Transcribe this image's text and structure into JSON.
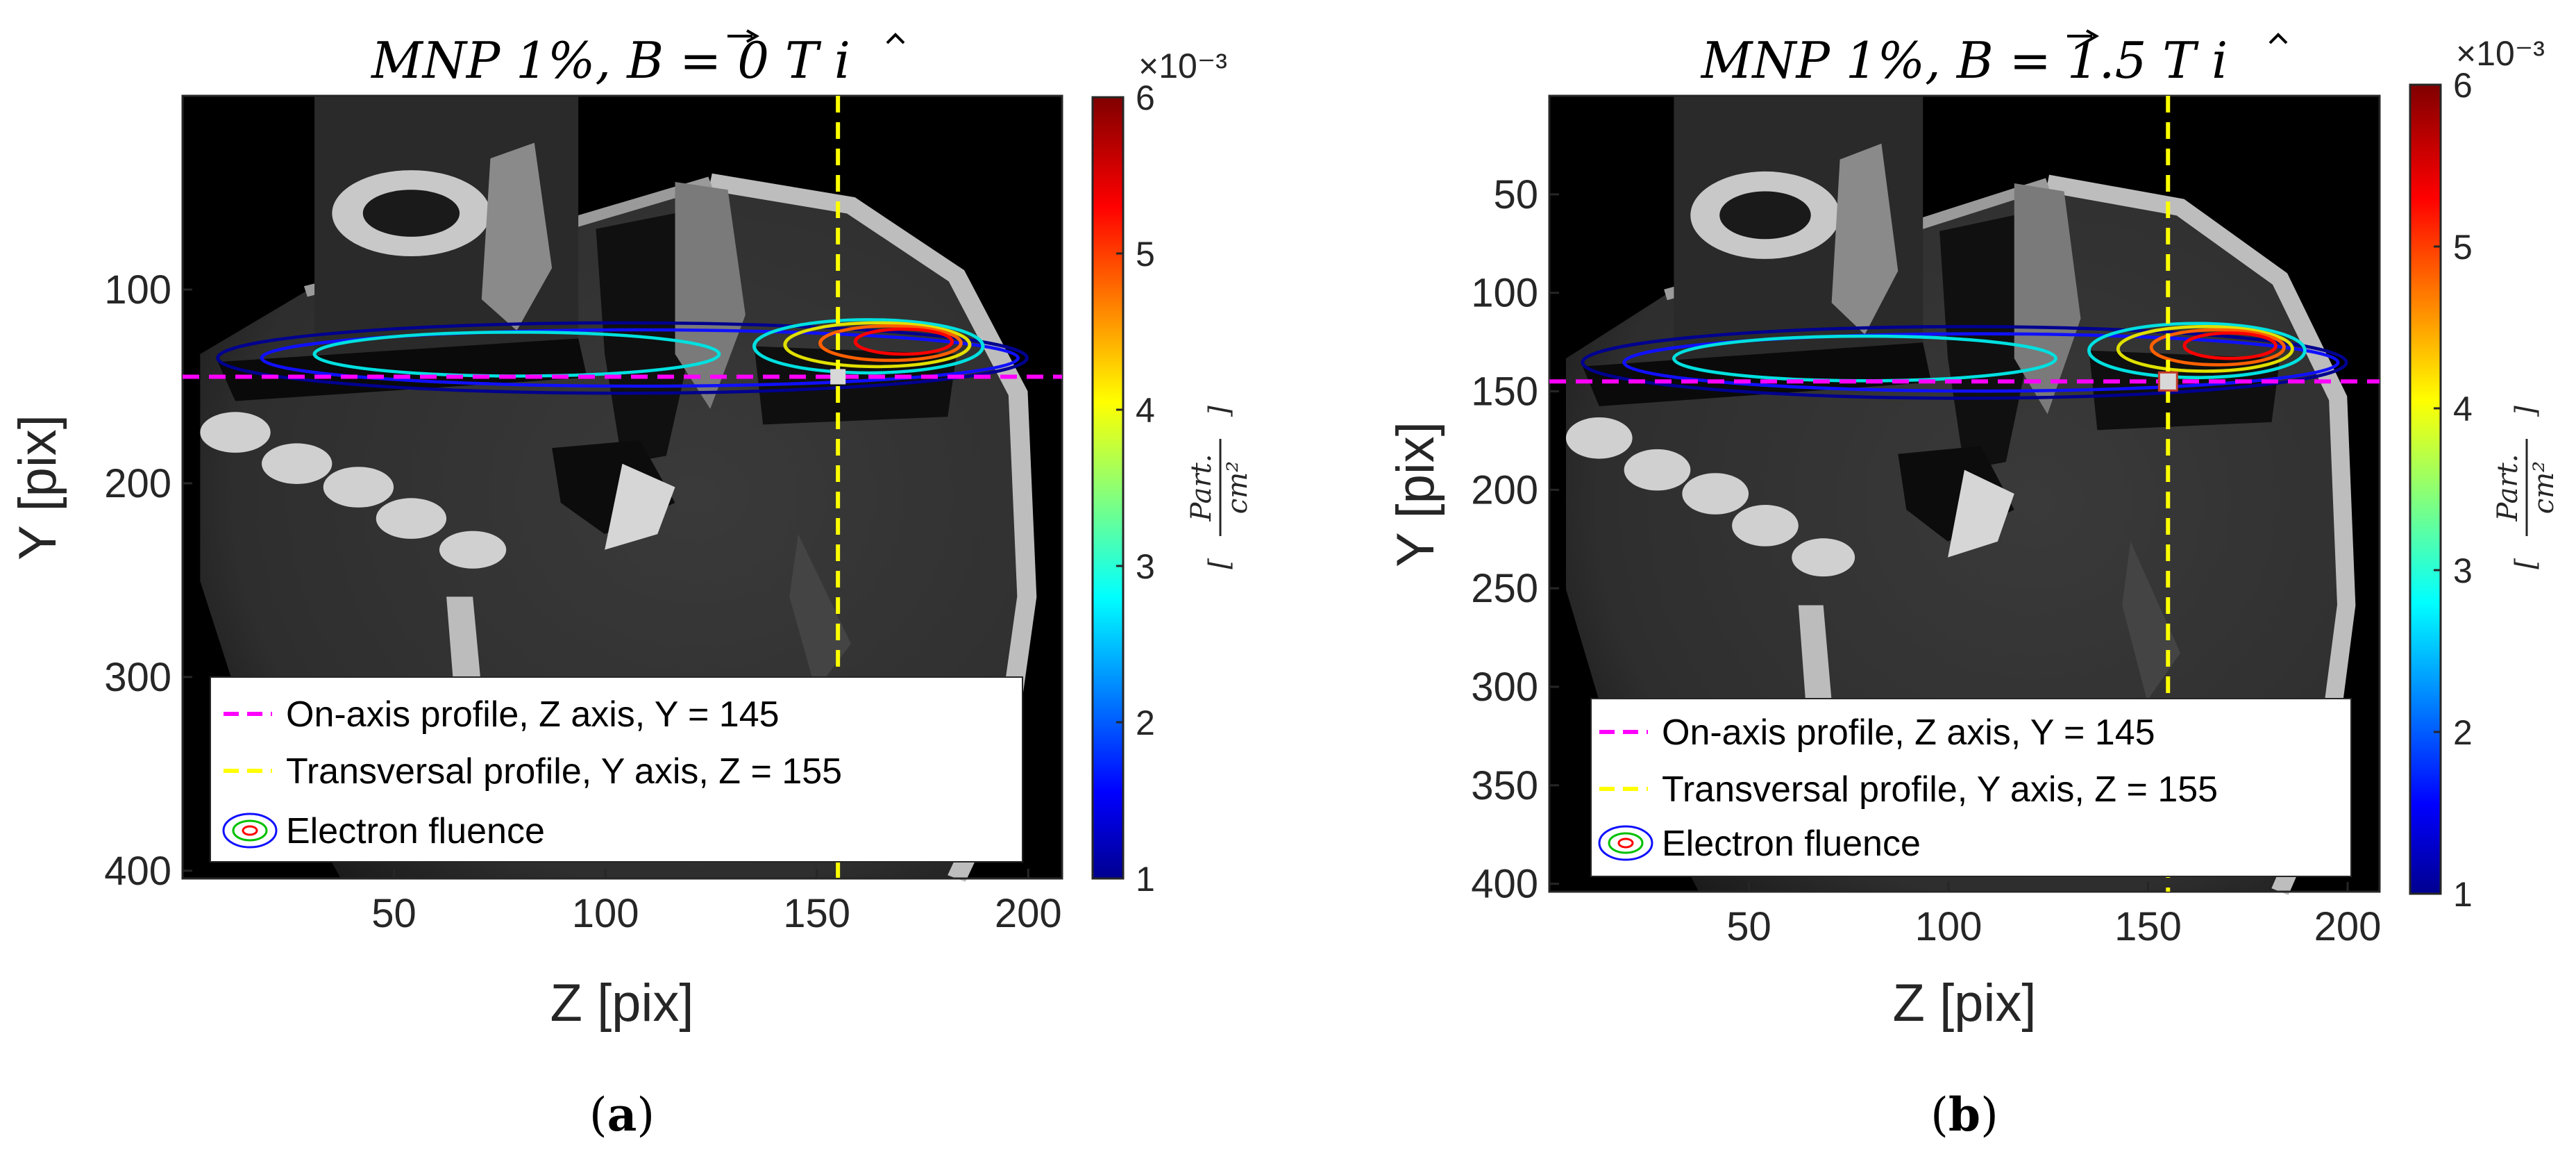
{
  "chart_data": [
    {
      "type": "heatmap",
      "panel": "a",
      "title": "MNP 1%, B = 0 T î",
      "title_parts": {
        "prefix": "MNP 1%, ",
        "field": "B",
        "eq": " = 0 T ",
        "unit_vec": "i"
      },
      "xlabel": "Z [pix]",
      "ylabel": "Y [pix]",
      "xlim": [
        0,
        208
      ],
      "ylim": [
        404,
        0
      ],
      "xticks": [
        50,
        100,
        150,
        200
      ],
      "yticks": [
        100,
        200,
        300,
        400
      ],
      "colorbar": {
        "min": 1,
        "max": 6,
        "ticks": [
          1,
          2,
          3,
          4,
          5,
          6
        ],
        "multiplier": "×10⁻³",
        "unit_num": "Part.",
        "unit_den": "cm²"
      },
      "lines": [
        {
          "name": "On-axis profile, Z axis, Y = 145",
          "orientation": "horizontal",
          "value": 145,
          "color": "#ff00ff"
        },
        {
          "name": "Transversal profile, Y axis, Z = 155",
          "orientation": "vertical",
          "value": 155,
          "color": "#ffff00"
        }
      ],
      "legend": [
        "On-axis profile, Z axis, Y = 145",
        "Transversal profile, Y axis, Z = 155",
        "Electron fluence"
      ],
      "legend_position": "bottom-right"
    },
    {
      "type": "heatmap",
      "panel": "b",
      "title": "MNP 1%, B = 1.5 T î",
      "title_parts": {
        "prefix": "MNP 1%, ",
        "field": "B",
        "eq": " = 1.5 T ",
        "unit_vec": "i"
      },
      "xlabel": "Z [pix]",
      "ylabel": "Y [pix]",
      "xlim": [
        0,
        208
      ],
      "ylim": [
        404,
        0
      ],
      "xticks": [
        50,
        100,
        150,
        200
      ],
      "yticks": [
        50,
        100,
        150,
        200,
        250,
        300,
        350,
        400
      ],
      "colorbar": {
        "min": 1,
        "max": 6,
        "ticks": [
          1,
          2,
          3,
          4,
          5,
          6
        ],
        "multiplier": "×10⁻³",
        "unit_num": "Part.",
        "unit_den": "cm²"
      },
      "lines": [
        {
          "name": "On-axis profile, Z axis, Y = 145",
          "orientation": "horizontal",
          "value": 145,
          "color": "#ff00ff"
        },
        {
          "name": "Transversal profile, Y axis, Z = 155",
          "orientation": "vertical",
          "value": 155,
          "color": "#ffff00"
        }
      ],
      "legend": [
        "On-axis profile, Z axis, Y = 145",
        "Transversal profile, Y axis, Z = 155",
        "Electron fluence"
      ],
      "legend_position": "bottom-right"
    }
  ],
  "panel_labels": [
    "a",
    "b"
  ]
}
